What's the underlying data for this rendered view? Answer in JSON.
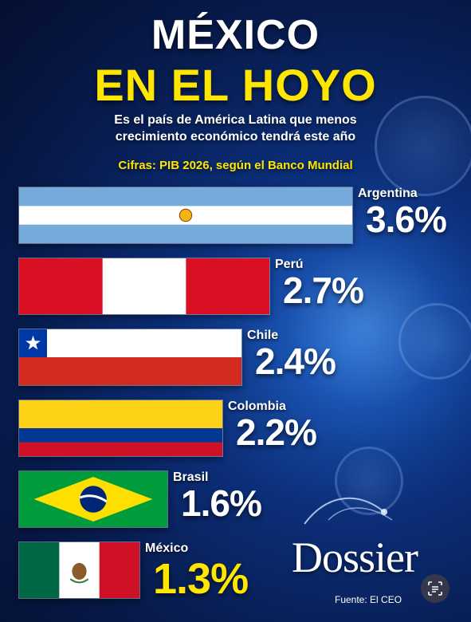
{
  "title_line1": "MÉXICO",
  "title_line2": "EN EL HOYO",
  "subtitle_line1": "Es el país de América Latina que menos",
  "subtitle_line2": "crecimiento económico tendrá este año",
  "source_line": "Cifras: PIB 2026, según el Banco Mundial",
  "logo_text": "Dossier",
  "footer_source": "Fuente: El CEO",
  "colors": {
    "title_white": "#ffffff",
    "highlight_yellow": "#ffe600",
    "background": "#0c2f7a"
  },
  "icons": {
    "scan": "scan-text-icon"
  },
  "chart_data": {
    "type": "bar",
    "orientation": "horizontal",
    "title": "MÉXICO EN EL HOYO",
    "subtitle": "Es el país de América Latina que menos crecimiento económico tendrá este año",
    "note": "Cifras: PIB 2026, según el Banco Mundial",
    "categories": [
      "Argentina",
      "Perú",
      "Chile",
      "Colombia",
      "Brasil",
      "México"
    ],
    "values": [
      3.6,
      2.7,
      2.4,
      2.2,
      1.6,
      1.3
    ],
    "labels": [
      "3.6%",
      "2.7%",
      "2.4%",
      "2.2%",
      "1.6%",
      "1.3%"
    ],
    "bar_style": "national flags",
    "highlight": "México"
  }
}
